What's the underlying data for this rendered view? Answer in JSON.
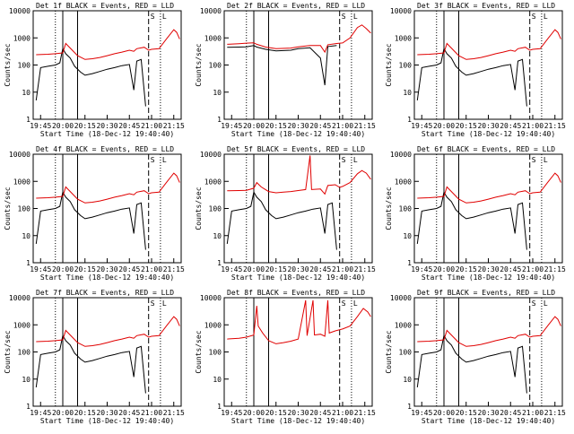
{
  "chart_data": [
    {
      "type": "line",
      "title": "Det 1f BLACK = Events, RED = LLD",
      "xlabel": "Start Time (18-Dec-12 19:40:40)",
      "ylabel": "Counts/sec",
      "yscale": "log",
      "ylim": [
        1,
        10000
      ],
      "xlim": [
        "19:40",
        "21:20"
      ],
      "xticks": [
        "19:45",
        "20:00",
        "20:15",
        "20:30",
        "20:45",
        "21:00",
        "21:15"
      ],
      "yticks": [
        "1",
        "10",
        "100",
        "1000",
        "10000"
      ],
      "markers": [
        "S",
        "L"
      ],
      "grid": false,
      "legend": "none",
      "series": [
        {
          "color": "#000000",
          "profile": "events_a"
        },
        {
          "color": "#e00000",
          "profile": "lld_a"
        }
      ]
    },
    {
      "type": "line",
      "title": "Det 2f BLACK = Events, RED = LLD",
      "xlabel": "Start Time (18-Dec-12 19:40:40)",
      "ylabel": "Counts/sec",
      "yscale": "log",
      "ylim": [
        1,
        10000
      ],
      "xlim": [
        "19:40",
        "21:20"
      ],
      "xticks": [
        "19:45",
        "20:00",
        "20:15",
        "20:30",
        "20:45",
        "21:00",
        "21:15"
      ],
      "yticks": [
        "1",
        "10",
        "100",
        "1000",
        "10000"
      ],
      "markers": [
        "S",
        "L"
      ],
      "grid": false,
      "legend": "none",
      "series": [
        {
          "color": "#000000",
          "profile": "events_b"
        },
        {
          "color": "#e00000",
          "profile": "lld_b"
        }
      ]
    },
    {
      "type": "line",
      "title": "Det 3f BLACK = Events, RED = LLD",
      "xlabel": "Start Time (18-Dec-12 19:40:40)",
      "ylabel": "Counts/sec",
      "yscale": "log",
      "ylim": [
        1,
        10000
      ],
      "xlim": [
        "19:40",
        "21:20"
      ],
      "xticks": [
        "19:45",
        "20:00",
        "20:15",
        "20:30",
        "20:45",
        "21:00",
        "21:15"
      ],
      "yticks": [
        "1",
        "10",
        "100",
        "1000",
        "10000"
      ],
      "markers": [
        "S",
        "L"
      ],
      "grid": false,
      "legend": "none",
      "series": [
        {
          "color": "#000000",
          "profile": "events_a"
        },
        {
          "color": "#e00000",
          "profile": "lld_a"
        }
      ]
    },
    {
      "type": "line",
      "title": "Det 4f BLACK = Events, RED = LLD",
      "xlabel": "Start Time (18-Dec-12 19:40:40)",
      "ylabel": "Counts/sec",
      "yscale": "log",
      "ylim": [
        1,
        10000
      ],
      "xlim": [
        "19:40",
        "21:20"
      ],
      "xticks": [
        "19:45",
        "20:00",
        "20:15",
        "20:30",
        "20:45",
        "21:00",
        "21:15"
      ],
      "yticks": [
        "1",
        "10",
        "100",
        "1000",
        "10000"
      ],
      "markers": [
        "S",
        "L"
      ],
      "grid": false,
      "legend": "none",
      "series": [
        {
          "color": "#000000",
          "profile": "events_a"
        },
        {
          "color": "#e00000",
          "profile": "lld_a"
        }
      ]
    },
    {
      "type": "line",
      "title": "Det 5f BLACK = Events, RED = LLD",
      "xlabel": "Start Time (18-Dec-12 19:40:40)",
      "ylabel": "Counts/sec",
      "yscale": "log",
      "ylim": [
        1,
        10000
      ],
      "xlim": [
        "19:40",
        "21:20"
      ],
      "xticks": [
        "19:45",
        "20:00",
        "20:15",
        "20:30",
        "20:45",
        "21:00",
        "21:15"
      ],
      "yticks": [
        "1",
        "10",
        "100",
        "1000",
        "10000"
      ],
      "markers": [
        "S",
        "L"
      ],
      "grid": false,
      "legend": "none",
      "series": [
        {
          "color": "#000000",
          "profile": "events_a"
        },
        {
          "color": "#e00000",
          "profile": "lld_c"
        }
      ]
    },
    {
      "type": "line",
      "title": "Det 6f BLACK = Events, RED = LLD",
      "xlabel": "Start Time (18-Dec-12 19:40:40)",
      "ylabel": "Counts/sec",
      "yscale": "log",
      "ylim": [
        1,
        10000
      ],
      "xlim": [
        "19:40",
        "21:20"
      ],
      "xticks": [
        "19:45",
        "20:00",
        "20:15",
        "20:30",
        "20:45",
        "21:00",
        "21:15"
      ],
      "yticks": [
        "1",
        "10",
        "100",
        "1000",
        "10000"
      ],
      "markers": [
        "S",
        "L"
      ],
      "grid": false,
      "legend": "none",
      "series": [
        {
          "color": "#000000",
          "profile": "events_a"
        },
        {
          "color": "#e00000",
          "profile": "lld_a"
        }
      ]
    },
    {
      "type": "line",
      "title": "Det 7f BLACK = Events, RED = LLD",
      "xlabel": "Start Time (18-Dec-12 19:40:40)",
      "ylabel": "Counts/sec",
      "yscale": "log",
      "ylim": [
        1,
        10000
      ],
      "xlim": [
        "19:40",
        "21:20"
      ],
      "xticks": [
        "19:45",
        "20:00",
        "20:15",
        "20:30",
        "20:45",
        "21:00",
        "21:15"
      ],
      "yticks": [
        "1",
        "10",
        "100",
        "1000",
        "10000"
      ],
      "markers": [
        "S",
        "L"
      ],
      "grid": false,
      "legend": "none",
      "series": [
        {
          "color": "#000000",
          "profile": "events_a"
        },
        {
          "color": "#e00000",
          "profile": "lld_a"
        }
      ]
    },
    {
      "type": "line",
      "title": "Det 8f BLACK = Events, RED = LLD",
      "xlabel": "Start Time (18-Dec-12 19:40:40)",
      "ylabel": "Counts/sec",
      "yscale": "log",
      "ylim": [
        1,
        10000
      ],
      "xlim": [
        "19:40",
        "21:20"
      ],
      "xticks": [
        "19:45",
        "20:00",
        "20:15",
        "20:30",
        "20:45",
        "21:00",
        "21:15"
      ],
      "yticks": [
        "1",
        "10",
        "100",
        "1000",
        "10000"
      ],
      "markers": [
        "S",
        "L"
      ],
      "grid": false,
      "legend": "none",
      "series": [
        {
          "color": "#000000",
          "profile": "events_none"
        },
        {
          "color": "#e00000",
          "profile": "lld_d"
        }
      ]
    },
    {
      "type": "line",
      "title": "Det 9f BLACK = Events, RED = LLD",
      "xlabel": "Start Time (18-Dec-12 19:40:40)",
      "ylabel": "Counts/sec",
      "yscale": "log",
      "ylim": [
        1,
        10000
      ],
      "xlim": [
        "19:40",
        "21:20"
      ],
      "xticks": [
        "19:45",
        "20:00",
        "20:15",
        "20:30",
        "20:45",
        "21:00",
        "21:15"
      ],
      "yticks": [
        "1",
        "10",
        "100",
        "1000",
        "10000"
      ],
      "markers": [
        "S",
        "L"
      ],
      "grid": false,
      "legend": "none",
      "series": [
        {
          "color": "#000000",
          "profile": "events_a"
        },
        {
          "color": "#e00000",
          "profile": "lld_a"
        }
      ]
    }
  ],
  "profiles": {
    "events_a": [
      [
        "19:42",
        5
      ],
      [
        "19:45",
        80
      ],
      [
        "19:50",
        90
      ],
      [
        "19:55",
        100
      ],
      [
        "19:58",
        120
      ],
      [
        "20:00",
        400
      ],
      [
        "20:02",
        260
      ],
      [
        "20:05",
        180
      ],
      [
        "20:08",
        90
      ],
      [
        "20:12",
        55
      ],
      [
        "20:15",
        42
      ],
      [
        "20:20",
        48
      ],
      [
        "20:25",
        58
      ],
      [
        "20:30",
        70
      ],
      [
        "20:35",
        80
      ],
      [
        "20:40",
        95
      ],
      [
        "20:45",
        105
      ],
      [
        "20:48",
        12
      ],
      [
        "20:50",
        140
      ],
      [
        "20:53",
        160
      ],
      [
        "20:56",
        3
      ]
    ],
    "events_b": [
      [
        "19:42",
        450
      ],
      [
        "19:50",
        460
      ],
      [
        "19:55",
        470
      ],
      [
        "20:00",
        520
      ],
      [
        "20:02",
        460
      ],
      [
        "20:08",
        380
      ],
      [
        "20:15",
        330
      ],
      [
        "20:25",
        350
      ],
      [
        "20:30",
        400
      ],
      [
        "20:38",
        430
      ],
      [
        "20:45",
        180
      ],
      [
        "20:48",
        18
      ],
      [
        "20:50",
        480
      ],
      [
        "20:56",
        520
      ]
    ],
    "events_none": [],
    "lld_a": [
      [
        "19:42",
        240
      ],
      [
        "19:50",
        250
      ],
      [
        "19:55",
        260
      ],
      [
        "20:00",
        280
      ],
      [
        "20:02",
        620
      ],
      [
        "20:05",
        420
      ],
      [
        "20:10",
        220
      ],
      [
        "20:15",
        160
      ],
      [
        "20:20",
        170
      ],
      [
        "20:25",
        190
      ],
      [
        "20:30",
        220
      ],
      [
        "20:35",
        260
      ],
      [
        "20:40",
        300
      ],
      [
        "20:45",
        350
      ],
      [
        "20:48",
        320
      ],
      [
        "20:50",
        400
      ],
      [
        "20:55",
        450
      ],
      [
        "20:58",
        350
      ],
      [
        "21:00",
        380
      ],
      [
        "21:05",
        400
      ],
      [
        "21:10",
        900
      ],
      [
        "21:15",
        2000
      ],
      [
        "21:17",
        1600
      ],
      [
        "21:19",
        900
      ]
    ],
    "lld_b": [
      [
        "19:42",
        580
      ],
      [
        "19:50",
        610
      ],
      [
        "19:55",
        640
      ],
      [
        "20:00",
        660
      ],
      [
        "20:02",
        580
      ],
      [
        "20:08",
        460
      ],
      [
        "20:15",
        400
      ],
      [
        "20:25",
        420
      ],
      [
        "20:30",
        470
      ],
      [
        "20:38",
        520
      ],
      [
        "20:45",
        520
      ],
      [
        "20:48",
        300
      ],
      [
        "20:50",
        560
      ],
      [
        "20:56",
        620
      ],
      [
        "21:00",
        650
      ],
      [
        "21:05",
        1000
      ],
      [
        "21:10",
        2400
      ],
      [
        "21:13",
        3000
      ],
      [
        "21:16",
        2200
      ],
      [
        "21:19",
        1500
      ]
    ],
    "lld_c": [
      [
        "19:42",
        450
      ],
      [
        "19:50",
        460
      ],
      [
        "19:55",
        470
      ],
      [
        "20:00",
        560
      ],
      [
        "20:02",
        900
      ],
      [
        "20:05",
        620
      ],
      [
        "20:10",
        420
      ],
      [
        "20:15",
        380
      ],
      [
        "20:20",
        400
      ],
      [
        "20:25",
        420
      ],
      [
        "20:30",
        460
      ],
      [
        "20:35",
        500
      ],
      [
        "20:38",
        9000
      ],
      [
        "20:39",
        500
      ],
      [
        "20:45",
        520
      ],
      [
        "20:48",
        340
      ],
      [
        "20:50",
        700
      ],
      [
        "20:55",
        750
      ],
      [
        "20:58",
        600
      ],
      [
        "21:00",
        650
      ],
      [
        "21:05",
        900
      ],
      [
        "21:10",
        1900
      ],
      [
        "21:13",
        2500
      ],
      [
        "21:16",
        2000
      ],
      [
        "21:19",
        1200
      ]
    ],
    "lld_d": [
      [
        "19:42",
        300
      ],
      [
        "19:50",
        320
      ],
      [
        "19:55",
        350
      ],
      [
        "20:00",
        420
      ],
      [
        "20:02",
        5000
      ],
      [
        "20:03",
        900
      ],
      [
        "20:06",
        500
      ],
      [
        "20:10",
        260
      ],
      [
        "20:15",
        200
      ],
      [
        "20:20",
        220
      ],
      [
        "20:25",
        250
      ],
      [
        "20:30",
        300
      ],
      [
        "20:35",
        8000
      ],
      [
        "20:36",
        400
      ],
      [
        "20:40",
        8000
      ],
      [
        "20:41",
        420
      ],
      [
        "20:45",
        450
      ],
      [
        "20:48",
        380
      ],
      [
        "20:50",
        8000
      ],
      [
        "20:51",
        500
      ],
      [
        "20:55",
        600
      ],
      [
        "21:00",
        700
      ],
      [
        "21:05",
        900
      ],
      [
        "21:10",
        2000
      ],
      [
        "21:14",
        4000
      ],
      [
        "21:17",
        3000
      ],
      [
        "21:19",
        2000
      ]
    ]
  }
}
